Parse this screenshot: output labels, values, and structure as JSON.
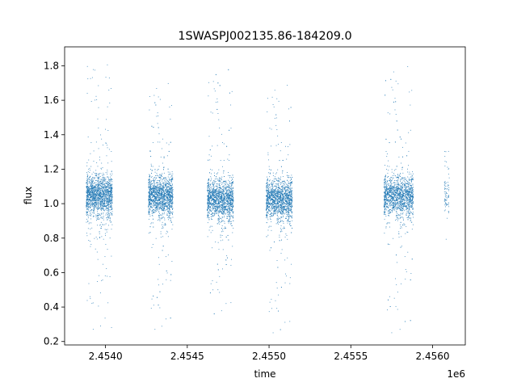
{
  "chart_data": {
    "type": "scatter",
    "title": "1SWASPJ002135.86-184209.0",
    "xlabel": "time",
    "ylabel": "flux",
    "x_offset_label": "1e6",
    "xlim": [
      2.45375,
      2.4562
    ],
    "ylim": [
      0.18,
      1.91
    ],
    "x_ticks": [
      2.454,
      2.4545,
      2.455,
      2.4555,
      2.456
    ],
    "x_tick_labels": [
      "2.4540",
      "2.4545",
      "2.4550",
      "2.4555",
      "2.4560"
    ],
    "y_ticks": [
      0.2,
      0.4,
      0.6,
      0.8,
      1.0,
      1.2,
      1.4,
      1.6,
      1.8
    ],
    "y_tick_labels": [
      "0.2",
      "0.4",
      "0.6",
      "0.8",
      "1.0",
      "1.2",
      "1.4",
      "1.6",
      "1.8"
    ],
    "grid": false,
    "point_color": "#1f77b4",
    "series": [
      {
        "observing_seasons": [
          {
            "x_start": 2.45388,
            "x_end": 2.45404,
            "flux_center": 1.05,
            "flux_min": 0.27,
            "flux_max": 1.83
          },
          {
            "x_start": 2.45426,
            "x_end": 2.45441,
            "flux_center": 1.05,
            "flux_min": 0.27,
            "flux_max": 1.72
          },
          {
            "x_start": 2.45462,
            "x_end": 2.45478,
            "flux_center": 1.03,
            "flux_min": 0.36,
            "flux_max": 1.8
          },
          {
            "x_start": 2.45498,
            "x_end": 2.45514,
            "flux_center": 1.03,
            "flux_min": 0.25,
            "flux_max": 1.71
          },
          {
            "x_start": 2.4557,
            "x_end": 2.45588,
            "flux_center": 1.05,
            "flux_min": 0.25,
            "flux_max": 1.82
          },
          {
            "x_start": 2.45607,
            "x_end": 2.4561,
            "flux_center": 1.05,
            "flux_min": 0.71,
            "flux_max": 1.37
          }
        ]
      }
    ]
  }
}
